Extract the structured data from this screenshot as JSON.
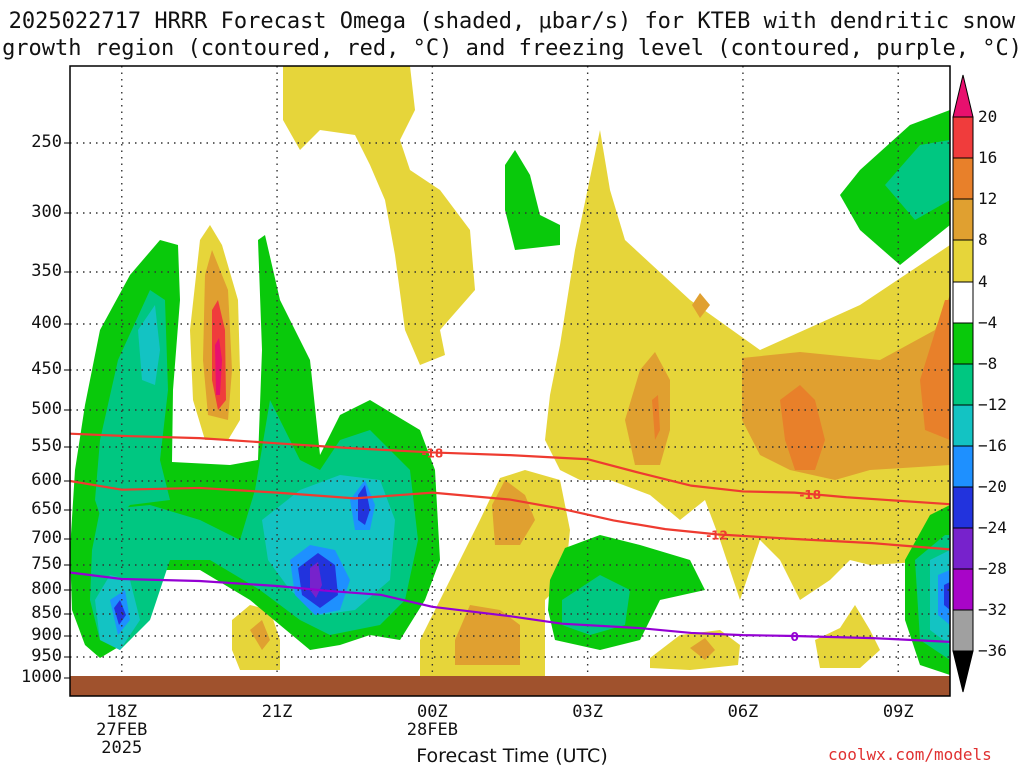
{
  "title_line1": "2025022717 HRRR Forecast Omega (shaded, μbar/s) for KTEB with dendritic snow",
  "title_line2": "growth region (contoured, red, °C) and freezing level (contoured, purple, °C)",
  "xlabel": "Forecast Time (UTC)",
  "credit": "coolwx.com/models",
  "colors": {
    "ground": "#a0522d",
    "isotherm_red": "#ee3b30",
    "freezing_purple": "#9400d3",
    "grid": "#333333"
  },
  "chart_data": {
    "type": "time-height contour",
    "x_ticks": [
      "18Z",
      "21Z",
      "00Z",
      "03Z",
      "06Z",
      "09Z"
    ],
    "x_sublabels": {
      "18Z": [
        "27FEB",
        "2025"
      ],
      "00Z": [
        "28FEB"
      ]
    },
    "xlim_hours": [
      17,
      34
    ],
    "y_ticks": [
      250,
      300,
      350,
      400,
      450,
      500,
      550,
      600,
      650,
      700,
      750,
      800,
      850,
      900,
      950,
      1000
    ],
    "yaxis": "pressure (mb), inverted, log scale",
    "ylim": [
      1000,
      200
    ],
    "colorbar": {
      "levels": [
        20,
        16,
        12,
        8,
        4,
        -4,
        -8,
        -12,
        -16,
        -20,
        -24,
        -28,
        -32,
        -36
      ],
      "colors": [
        "#e8106e",
        "#f03c3c",
        "#e8802a",
        "#e0a030",
        "#e6d53a",
        "#ffffff",
        "#09c90b",
        "#00c781",
        "#13c3c3",
        "#1e90ff",
        "#2233dd",
        "#7722cc",
        "#a805c8",
        "#a0a0a0",
        "#000000"
      ]
    },
    "contours": [
      {
        "label": "-18",
        "color": "#ee3b30",
        "points_hours_mb": [
          [
            17,
            532
          ],
          [
            18,
            535
          ],
          [
            19.5,
            538
          ],
          [
            21,
            545
          ],
          [
            22.5,
            552
          ],
          [
            24,
            558
          ],
          [
            25.5,
            562
          ],
          [
            27,
            568
          ],
          [
            28,
            588
          ],
          [
            29,
            608
          ],
          [
            30,
            618
          ],
          [
            31,
            620
          ],
          [
            32,
            628
          ],
          [
            34,
            640
          ]
        ]
      },
      {
        "label": "-12",
        "color": "#ee3b30",
        "points_hours_mb": [
          [
            17,
            600
          ],
          [
            18,
            615
          ],
          [
            19.5,
            612
          ],
          [
            21,
            620
          ],
          [
            22.5,
            630
          ],
          [
            24,
            620
          ],
          [
            25.5,
            632
          ],
          [
            26.5,
            648
          ],
          [
            27.5,
            668
          ],
          [
            28.5,
            683
          ],
          [
            29.5,
            692
          ],
          [
            31,
            700
          ],
          [
            32.5,
            708
          ],
          [
            34,
            720
          ]
        ]
      },
      {
        "label": "0",
        "color": "#9400d3",
        "points_hours_mb": [
          [
            17,
            765
          ],
          [
            18,
            778
          ],
          [
            19.5,
            782
          ],
          [
            21,
            792
          ],
          [
            22,
            802
          ],
          [
            23,
            810
          ],
          [
            24,
            835
          ],
          [
            25.5,
            855
          ],
          [
            26.5,
            872
          ],
          [
            28,
            882
          ],
          [
            29,
            893
          ],
          [
            30,
            898
          ],
          [
            31,
            900
          ],
          [
            32.5,
            905
          ],
          [
            34,
            914
          ]
        ]
      }
    ]
  }
}
